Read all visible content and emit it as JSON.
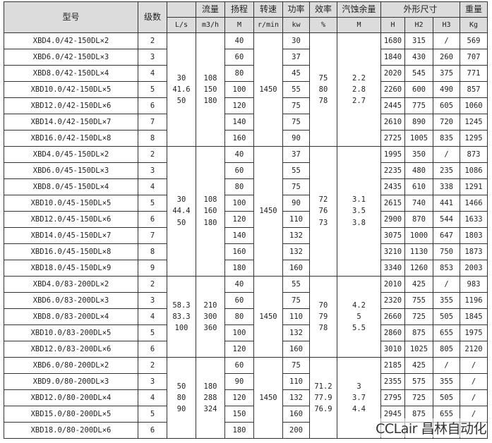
{
  "header": {
    "model": "型号",
    "stages": "级数",
    "flow_blank": "",
    "flow": "流量",
    "head": "扬程",
    "speed": "转速",
    "power": "功率",
    "efficiency": "效率",
    "npsh": "汽蚀余量",
    "dimensions": "外形尺寸",
    "weight": "重量",
    "units": {
      "ls": "L/s",
      "m3h": "m3/h",
      "head": "M",
      "speed": "r/min",
      "power": "kw",
      "eff": "%",
      "npsh": "M",
      "h": "H",
      "h2": "H2",
      "h3": "H3",
      "kg": "Kg"
    }
  },
  "groups": [
    {
      "flow_ls": "30\n41.6\n50",
      "flow_m3h": "108\n150\n180",
      "speed": "1450",
      "efficiency": "75\n80\n78",
      "npsh": "2.2\n2.8\n2.7",
      "rows": [
        [
          "XBD4.0/42-150DL×2",
          "2",
          "40",
          "30",
          "1680",
          "315",
          "/",
          "569"
        ],
        [
          "XBD6.0/42-150DL×3",
          "3",
          "60",
          "37",
          "1840",
          "430",
          "260",
          "707"
        ],
        [
          "XBD8.0/42-150DL×4",
          "4",
          "80",
          "45",
          "2020",
          "545",
          "375",
          "771"
        ],
        [
          "XBD10.0/42-150DL×5",
          "5",
          "100",
          "55",
          "2260",
          "600",
          "490",
          "857"
        ],
        [
          "XBD12.0/42-150DL×6",
          "6",
          "120",
          "75",
          "2445",
          "775",
          "605",
          "1060"
        ],
        [
          "XBD14.0/42-150DL×7",
          "7",
          "140",
          "75",
          "2610",
          "890",
          "720",
          "1245"
        ],
        [
          "XBD16.0/42-150DL×8",
          "8",
          "160",
          "90",
          "2725",
          "1005",
          "835",
          "1295"
        ]
      ]
    },
    {
      "flow_ls": "30\n44.4\n50",
      "flow_m3h": "108\n160\n180",
      "speed": "1450",
      "efficiency": "72\n76\n73",
      "npsh": "3.1\n3.5\n3.8",
      "rows": [
        [
          "XBD4.0/45-150DL×2",
          "2",
          "40",
          "37",
          "1995",
          "350",
          "/",
          "873"
        ],
        [
          "XBD6.0/45-150DL×3",
          "3",
          "60",
          "55",
          "2235",
          "480",
          "235",
          "1086"
        ],
        [
          "XBD8.0/45-150DL×4",
          "4",
          "80",
          "75",
          "2435",
          "610",
          "338",
          "1291"
        ],
        [
          "XBD10.0/45-150DL×5",
          "5",
          "100",
          "90",
          "2615",
          "740",
          "441",
          "1466"
        ],
        [
          "XBD12.0/45-150DL×6",
          "6",
          "120",
          "110",
          "2900",
          "870",
          "544",
          "1633"
        ],
        [
          "XBD14.0/45-150DL×7",
          "7",
          "140",
          "132",
          "3075",
          "1000",
          "647",
          "1803"
        ],
        [
          "XBD16.0/45-150DL×8",
          "8",
          "160",
          "132",
          "3210",
          "1130",
          "750",
          "1873"
        ],
        [
          "XBD18.0/45-150DL×9",
          "9",
          "180",
          "160",
          "3340",
          "1260",
          "853",
          "2003"
        ]
      ]
    },
    {
      "flow_ls": "58.3\n83.3\n100",
      "flow_m3h": "210\n300\n360",
      "speed": "1450",
      "efficiency": "70\n79\n78",
      "npsh": "4.2\n5\n5.5",
      "rows": [
        [
          "XBD4.0/83-200DL×2",
          "2",
          "40",
          "55",
          "2010",
          "425",
          "/",
          "983"
        ],
        [
          "XBD6.0/83-200DL×3",
          "3",
          "60",
          "75",
          "2320",
          "755",
          "355",
          "1196"
        ],
        [
          "XBD8.0/83-200DL×4",
          "4",
          "80",
          "110",
          "2660",
          "725",
          "505",
          "1845"
        ],
        [
          "XBD10.0/83-200DL×5",
          "5",
          "100",
          "132",
          "2860",
          "875",
          "655",
          "1975"
        ],
        [
          "XBD12.0/83-200DL×6",
          "6",
          "120",
          "160",
          "3010",
          "1025",
          "805",
          "2120"
        ]
      ]
    },
    {
      "flow_ls": "50\n80\n90",
      "flow_m3h": "180\n288\n324",
      "speed": "1450",
      "efficiency": "71.2\n77.9\n76.9",
      "npsh": "3\n3.7\n4.4",
      "rows": [
        [
          "XBD6.0/80-200DL×2",
          "2",
          "60",
          "75",
          "2185",
          "425",
          "/",
          "/"
        ],
        [
          "XBD9.0/80-200DL×3",
          "3",
          "90",
          "110",
          "2355",
          "575",
          "355",
          "/"
        ],
        [
          "XBD12.0/80-200DL×4",
          "4",
          "120",
          "132",
          "2795",
          "725",
          "505",
          "/"
        ],
        [
          "XBD15.0/80-200DL×5",
          "5",
          "150",
          "160",
          "2945",
          "875",
          "655",
          "/"
        ],
        [
          "XBD18.0/80-200DL×6",
          "6",
          "180",
          "200",
          "",
          "",
          "",
          ""
        ]
      ]
    }
  ],
  "watermark": "CCLair 昌林自动化"
}
